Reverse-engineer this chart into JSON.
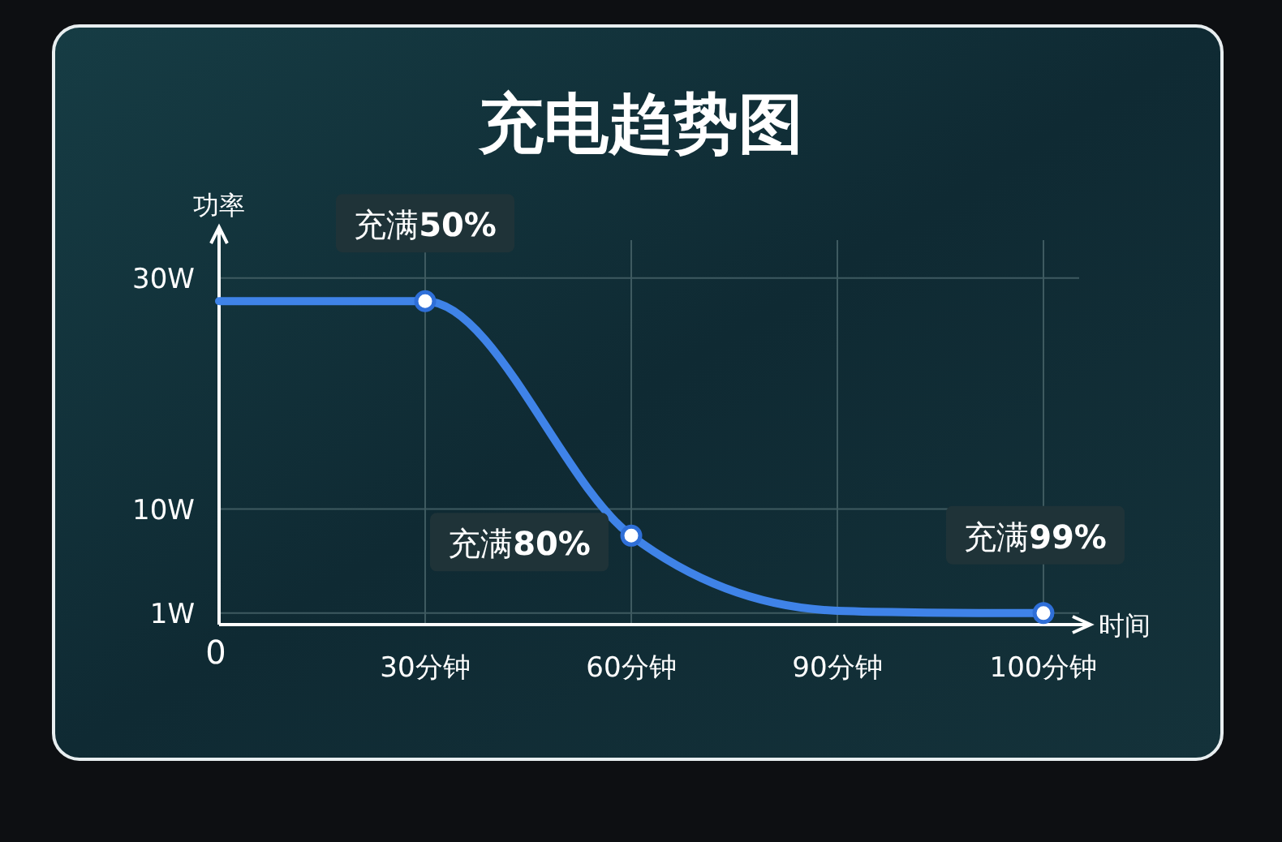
{
  "chart_data": {
    "type": "line",
    "title": "充电趋势图",
    "xlabel": "时间",
    "ylabel": "功率",
    "categories": [
      "0",
      "30分钟",
      "60分钟",
      "90分钟",
      "100分钟"
    ],
    "series": [
      {
        "color": "#3f83e8",
        "values": [
          28,
          28,
          7.7,
          1.2,
          1
        ]
      }
    ],
    "ylim": [
      0,
      33
    ],
    "yticks": [
      {
        "value": 1,
        "label": "1W"
      },
      {
        "value": 10,
        "label": "10W"
      },
      {
        "value": 30,
        "label": "30W"
      }
    ],
    "grid": true,
    "line_style": "solid",
    "annotations": [
      {
        "text": "充满**50%**",
        "x": "30分钟",
        "y": 28
      },
      {
        "text": "充满**80%**",
        "x": "60分钟",
        "y": 7.7
      },
      {
        "text": "充满**99%**",
        "x": "100分钟",
        "y": 1
      }
    ]
  }
}
